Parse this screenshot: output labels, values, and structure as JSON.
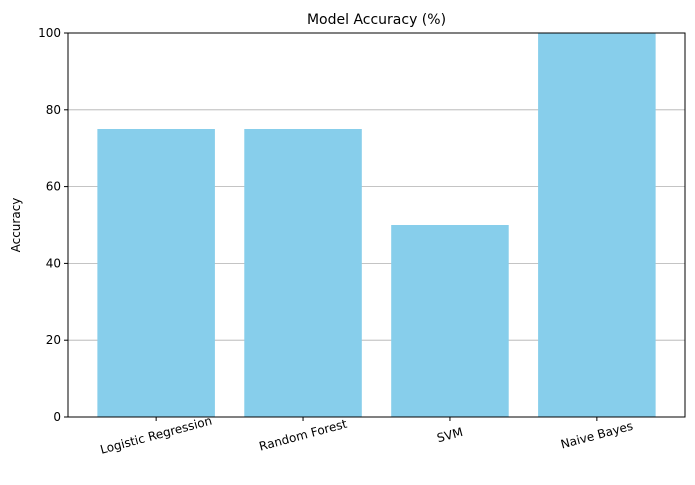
{
  "chart_data": {
    "type": "bar",
    "title": "Model Accuracy (%)",
    "xlabel": "",
    "ylabel": "Accuracy",
    "categories": [
      "Logistic Regression",
      "Random Forest",
      "SVM",
      "Naive Bayes"
    ],
    "values": [
      75,
      75,
      50,
      100
    ],
    "ylim": [
      0,
      100
    ],
    "yticks": [
      0,
      20,
      40,
      60,
      80,
      100
    ],
    "xtick_rotation_deg": 15,
    "grid": "y-axis on",
    "legend": "none",
    "colors": {
      "bar": "#87ceeb",
      "grid": "#b0b0b0",
      "axis": "#000000",
      "background": "#ffffff"
    }
  }
}
